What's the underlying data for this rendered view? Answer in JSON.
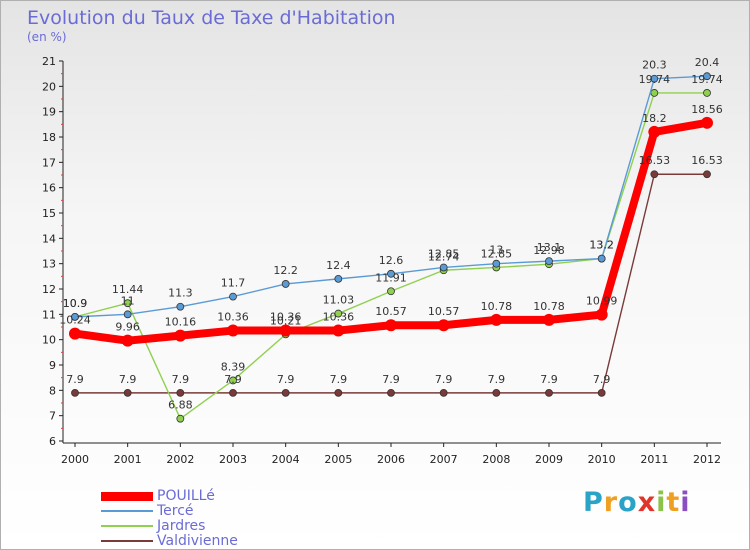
{
  "header": {
    "title": "Evolution du Taux de Taxe d'Habitation",
    "unit": "(en %)"
  },
  "logo": {
    "letters": [
      "P",
      "r",
      "o",
      "x",
      "i",
      "t",
      "i"
    ],
    "colors": [
      "#2aa3c6",
      "#f0a020",
      "#2aa3c6",
      "#e0342a",
      "#8bc34a",
      "#f0a020",
      "#8a4fc0"
    ]
  },
  "chart_data": {
    "type": "line",
    "title": "Evolution du Taux de Taxe d'Habitation",
    "ylabel": "(en %)",
    "xlabel": "",
    "categories": [
      "2000",
      "2001",
      "2002",
      "2003",
      "2004",
      "2005",
      "2006",
      "2007",
      "2008",
      "2009",
      "2010",
      "2011",
      "2012"
    ],
    "ylim": [
      6,
      21
    ],
    "yticks": [
      6,
      7,
      8,
      9,
      10,
      11,
      12,
      13,
      14,
      15,
      16,
      17,
      18,
      19,
      20,
      21
    ],
    "grid": false,
    "legend_position": "bottom-left",
    "series": [
      {
        "name": "POUILLé",
        "color": "#ff0000",
        "values": [
          10.24,
          9.96,
          10.16,
          10.36,
          10.36,
          10.36,
          10.57,
          10.57,
          10.78,
          10.78,
          10.99,
          18.2,
          18.56
        ],
        "labels": [
          "10.24",
          "9.96",
          "10.16",
          "10.36",
          "10.36",
          "10.36",
          "10.57",
          "10.57",
          "10.78",
          "10.78",
          "10.99",
          "18.2",
          "18.56"
        ]
      },
      {
        "name": "Tercé",
        "color": "#5b9bd5",
        "values": [
          10.9,
          11.0,
          11.3,
          11.7,
          12.2,
          12.4,
          12.6,
          12.85,
          13.0,
          13.1,
          13.2,
          20.3,
          20.4
        ],
        "labels": [
          "10.9",
          "11",
          "11.3",
          "11.7",
          "12.2",
          "12.4",
          "12.6",
          "12.85",
          "13",
          "13.1",
          "13.2",
          "20.3",
          "20.4"
        ]
      },
      {
        "name": "Jardres",
        "color": "#90d050",
        "values": [
          10.9,
          11.44,
          6.88,
          8.39,
          10.21,
          11.03,
          11.91,
          12.74,
          12.85,
          12.98,
          13.2,
          19.74,
          19.74
        ],
        "labels": [
          "10.9",
          "11.44",
          "6.88",
          "8.39",
          "10.21",
          "11.03",
          "11.91",
          "12.74",
          "12.85",
          "12.98",
          "13.2",
          "19.74",
          "19.74"
        ]
      },
      {
        "name": "Valdivienne",
        "color": "#7a3a3a",
        "values": [
          7.9,
          7.9,
          7.9,
          7.9,
          7.9,
          7.9,
          7.9,
          7.9,
          7.9,
          7.9,
          7.9,
          16.53,
          16.53
        ],
        "labels": [
          "7.9",
          "7.9",
          "7.9",
          "7.9",
          "7.9",
          "7.9",
          "7.9",
          "7.9",
          "7.9",
          "7.9",
          "7.9",
          "16.53",
          "16.53"
        ]
      }
    ]
  }
}
